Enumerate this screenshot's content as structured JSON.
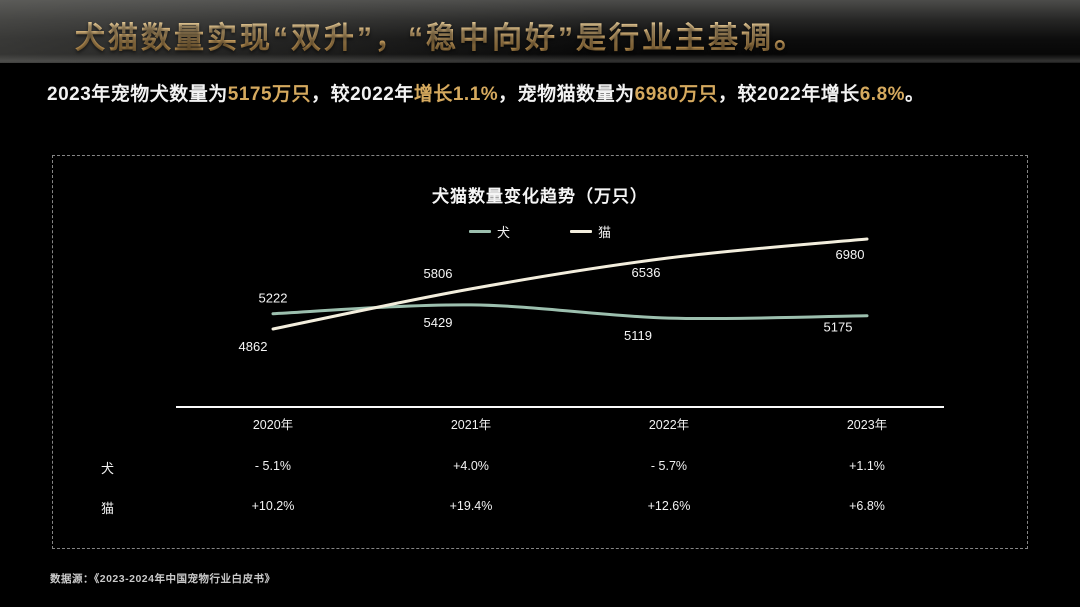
{
  "header": {
    "title": "犬猫数量实现“双升”，“稳中向好”是行业主基调。"
  },
  "subtitle": {
    "seg1": "2023年宠物犬数量为",
    "seg2": "5175万只",
    "seg3": "，较2022年",
    "seg4": "增长1.1%",
    "seg5": "，宠物猫数量为",
    "seg6": "6980万只",
    "seg7": "，较2022年增长",
    "seg8": "6.8%",
    "seg9": "。"
  },
  "chart_data": {
    "type": "line",
    "title": "犬猫数量变化趋势（万只）",
    "categories": [
      "2020年",
      "2021年",
      "2022年",
      "2023年"
    ],
    "series": [
      {
        "name": "犬",
        "color": "#9cbfae",
        "values": [
          5222,
          5429,
          5119,
          5175
        ]
      },
      {
        "name": "猫",
        "color": "#f3eedd",
        "values": [
          4862,
          5806,
          6536,
          6980
        ]
      }
    ],
    "ylim": [
      4700,
      7100
    ],
    "grid": false,
    "legend_position": "top",
    "label_color": "#f5f5f5"
  },
  "table": {
    "columns": [
      "2020年",
      "2021年",
      "2022年",
      "2023年"
    ],
    "rows": [
      {
        "label": "犬",
        "values": [
          "- 5.1%",
          "+4.0%",
          "- 5.7%",
          "+1.1%"
        ]
      },
      {
        "label": "猫",
        "values": [
          "+10.2%",
          "+19.4%",
          "+12.6%",
          "+6.8%"
        ]
      }
    ]
  },
  "footer": {
    "source": "数据源：《2023-2024年中国宠物行业白皮书》"
  },
  "colors": {
    "accent_gold": "#d5a95e",
    "dog_line": "#9cbfae",
    "cat_line": "#f3eedd",
    "background": "#000000"
  }
}
